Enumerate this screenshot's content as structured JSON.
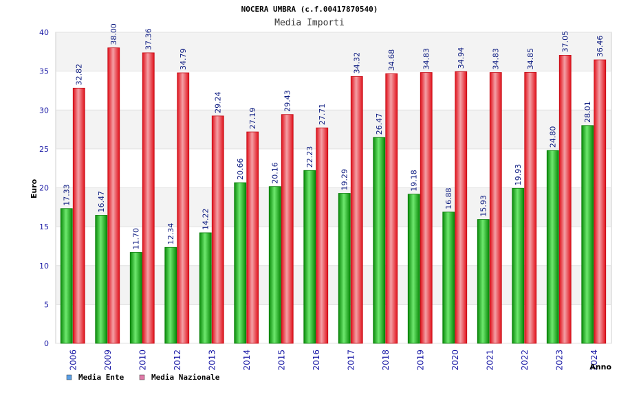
{
  "chart_data": {
    "type": "bar",
    "title": "NOCERA UMBRA (c.f.00417870540)",
    "subtitle": "Media Importi",
    "ylabel": "Euro",
    "xlabel": "Anno",
    "ylim": [
      0,
      40
    ],
    "yticks": [
      0,
      5,
      10,
      15,
      20,
      25,
      30,
      35,
      40
    ],
    "grid": true,
    "legend_position": "bottom-left",
    "categories": [
      "2006",
      "2009",
      "2010",
      "2012",
      "2013",
      "2014",
      "2015",
      "2016",
      "2017",
      "2018",
      "2019",
      "2020",
      "2021",
      "2022",
      "2023",
      "2024"
    ],
    "series": [
      {
        "name": "Media Ente",
        "bar_color": "#0aa00a",
        "legend_color": "#5aa0e6",
        "values": [
          17.33,
          16.47,
          11.7,
          12.34,
          14.22,
          20.66,
          20.16,
          22.23,
          19.29,
          26.47,
          19.18,
          16.88,
          15.93,
          19.93,
          24.8,
          28.01
        ],
        "labels": [
          "17.33",
          "16.47",
          "11.70",
          "12.34",
          "14.22",
          "20.66",
          "20.16",
          "22.23",
          "19.29",
          "26.47",
          "19.18",
          "16.88",
          "15.93",
          "19.93",
          "24.80",
          "28.01"
        ]
      },
      {
        "name": "Media Nazionale",
        "bar_color": "#e6141e",
        "legend_color": "#e07aa8",
        "values": [
          32.82,
          38.0,
          37.36,
          34.79,
          29.24,
          27.19,
          29.43,
          27.71,
          34.32,
          34.68,
          34.83,
          34.94,
          34.83,
          34.85,
          37.05,
          36.46
        ],
        "labels": [
          "32.82",
          "38.00",
          "37.36",
          "34.79",
          "29.24",
          "27.19",
          "29.43",
          "27.71",
          "34.32",
          "34.68",
          "34.83",
          "34.94",
          "34.83",
          "34.85",
          "37.05",
          "36.46"
        ]
      }
    ]
  }
}
